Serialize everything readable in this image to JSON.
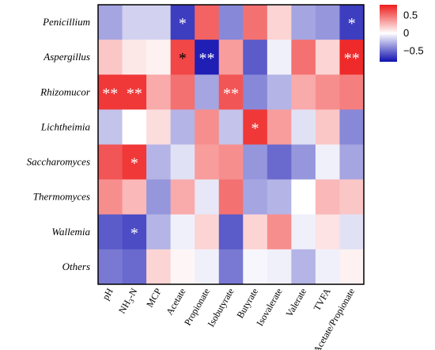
{
  "chart_data": {
    "type": "heatmap",
    "rows": [
      "Penicillium",
      "Aspergillus",
      "Rhizomucor",
      "Lichtheimia",
      "Saccharomyces",
      "Thermomyces",
      "Wallemia",
      "Others"
    ],
    "columns": [
      "pH",
      "NH3-N",
      "MCP",
      "Acetate",
      "Propionate",
      "Isobutyrate",
      "Butyrate",
      "Isovalerate",
      "Valerate",
      "TVFA",
      "Acetate/Propionate"
    ],
    "columns_display": [
      {
        "base": "pH",
        "sub": "",
        "rest": ""
      },
      {
        "base": "NH",
        "sub": "3",
        "rest": "-N"
      },
      {
        "base": "MCP",
        "sub": "",
        "rest": ""
      },
      {
        "base": "Acetate",
        "sub": "",
        "rest": ""
      },
      {
        "base": "Propionate",
        "sub": "",
        "rest": ""
      },
      {
        "base": "Isobutyrate",
        "sub": "",
        "rest": ""
      },
      {
        "base": "Butyrate",
        "sub": "",
        "rest": ""
      },
      {
        "base": "Isovalerate",
        "sub": "",
        "rest": ""
      },
      {
        "base": "Valerate",
        "sub": "",
        "rest": ""
      },
      {
        "base": "TVFA",
        "sub": "",
        "rest": ""
      },
      {
        "base": "Acetate/Propionate",
        "sub": "",
        "rest": ""
      }
    ],
    "values": [
      [
        -0.3,
        -0.15,
        -0.15,
        -0.65,
        0.55,
        -0.4,
        0.5,
        0.15,
        -0.3,
        -0.35,
        -0.65
      ],
      [
        0.2,
        0.08,
        0.05,
        0.65,
        -0.75,
        0.35,
        -0.55,
        -0.05,
        0.5,
        0.15,
        0.75
      ],
      [
        0.7,
        0.7,
        0.3,
        0.5,
        -0.3,
        0.6,
        -0.4,
        -0.25,
        0.3,
        0.4,
        0.45
      ],
      [
        -0.2,
        0.0,
        0.12,
        -0.25,
        0.4,
        -0.2,
        0.7,
        0.35,
        -0.1,
        0.2,
        -0.4
      ],
      [
        0.6,
        0.7,
        -0.25,
        -0.1,
        0.35,
        0.4,
        -0.35,
        -0.5,
        -0.35,
        -0.05,
        -0.3
      ],
      [
        0.4,
        0.25,
        -0.35,
        0.3,
        -0.08,
        0.5,
        -0.3,
        -0.25,
        0.0,
        0.25,
        0.2
      ],
      [
        -0.55,
        -0.6,
        -0.25,
        -0.05,
        0.15,
        -0.55,
        0.15,
        0.4,
        -0.05,
        0.1,
        -0.1
      ],
      [
        -0.45,
        -0.5,
        0.15,
        0.03,
        -0.05,
        -0.45,
        -0.03,
        -0.05,
        -0.25,
        -0.05,
        0.05
      ]
    ],
    "significance": [
      [
        "",
        "",
        "",
        "*",
        "",
        "",
        "",
        "",
        "",
        "",
        "*"
      ],
      [
        "",
        "",
        "",
        "*",
        "**",
        "",
        "",
        "",
        "",
        "",
        "**"
      ],
      [
        "**",
        "**",
        "",
        "",
        "",
        "**",
        "",
        "",
        "",
        "",
        ""
      ],
      [
        "",
        "",
        "",
        "",
        "",
        "",
        "*",
        "",
        "",
        "",
        ""
      ],
      [
        "",
        "*",
        "",
        "",
        "",
        "",
        "",
        "",
        "",
        "",
        ""
      ],
      [
        "",
        "",
        "",
        "",
        "",
        "",
        "",
        "",
        "",
        "",
        ""
      ],
      [
        "",
        "*",
        "",
        "",
        "",
        "",
        "",
        "",
        "",
        "",
        ""
      ],
      [
        "",
        "",
        "",
        "",
        "",
        "",
        "",
        "",
        "",
        "",
        ""
      ]
    ],
    "significance_colors": [
      [
        "",
        "",
        "",
        "#ffffff",
        "",
        "",
        "",
        "",
        "",
        "",
        "#ffffff"
      ],
      [
        "",
        "",
        "",
        "#000000",
        "#ffffff",
        "",
        "",
        "",
        "",
        "",
        "#ffffff"
      ],
      [
        "#ffffff",
        "#ffffff",
        "",
        "",
        "",
        "#ffffff",
        "",
        "",
        "",
        "",
        ""
      ],
      [
        "",
        "",
        "",
        "",
        "",
        "",
        "#ffffff",
        "",
        "",
        "",
        ""
      ],
      [
        "",
        "#ffffff",
        "",
        "",
        "",
        "",
        "",
        "",
        "",
        "",
        ""
      ],
      [
        "",
        "",
        "",
        "",
        "",
        "",
        "",
        "",
        "",
        "",
        ""
      ],
      [
        "",
        "#ffffff",
        "",
        "",
        "",
        "",
        "",
        "",
        "",
        "",
        ""
      ],
      [
        "",
        "",
        "",
        "",
        "",
        "",
        "",
        "",
        "",
        "",
        ""
      ]
    ],
    "value_range": [
      -0.8,
      0.8
    ],
    "colormap": {
      "low": "#1010b0",
      "mid": "#ffffff",
      "high": "#ee1c1c"
    },
    "colorbar": {
      "ticks": [
        0.5,
        0,
        -0.5
      ],
      "labels": [
        "0.5",
        "0",
        "−0.5"
      ]
    },
    "title": "",
    "xlabel": "",
    "ylabel": "",
    "grid": false,
    "legend": "colorbar, top-right"
  }
}
